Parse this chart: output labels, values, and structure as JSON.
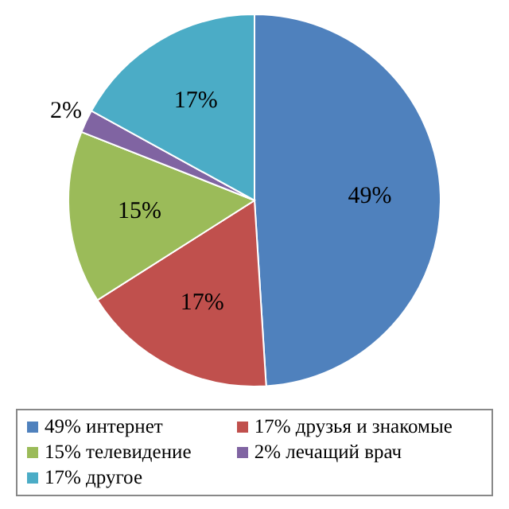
{
  "chart_data": {
    "type": "pie",
    "categories": [
      "49% интернет",
      "17% друзья и знакомые",
      "15% телевидение",
      "2% лечащий врач",
      "17% другое"
    ],
    "values": [
      49,
      17,
      15,
      2,
      17
    ],
    "colors": [
      "#4f81bd",
      "#c0504d",
      "#9bbb59",
      "#8064a2",
      "#4bacc6"
    ],
    "value_labels": [
      "49%",
      "17%",
      "15%",
      "2%",
      "17%"
    ],
    "legend": "bottom"
  }
}
